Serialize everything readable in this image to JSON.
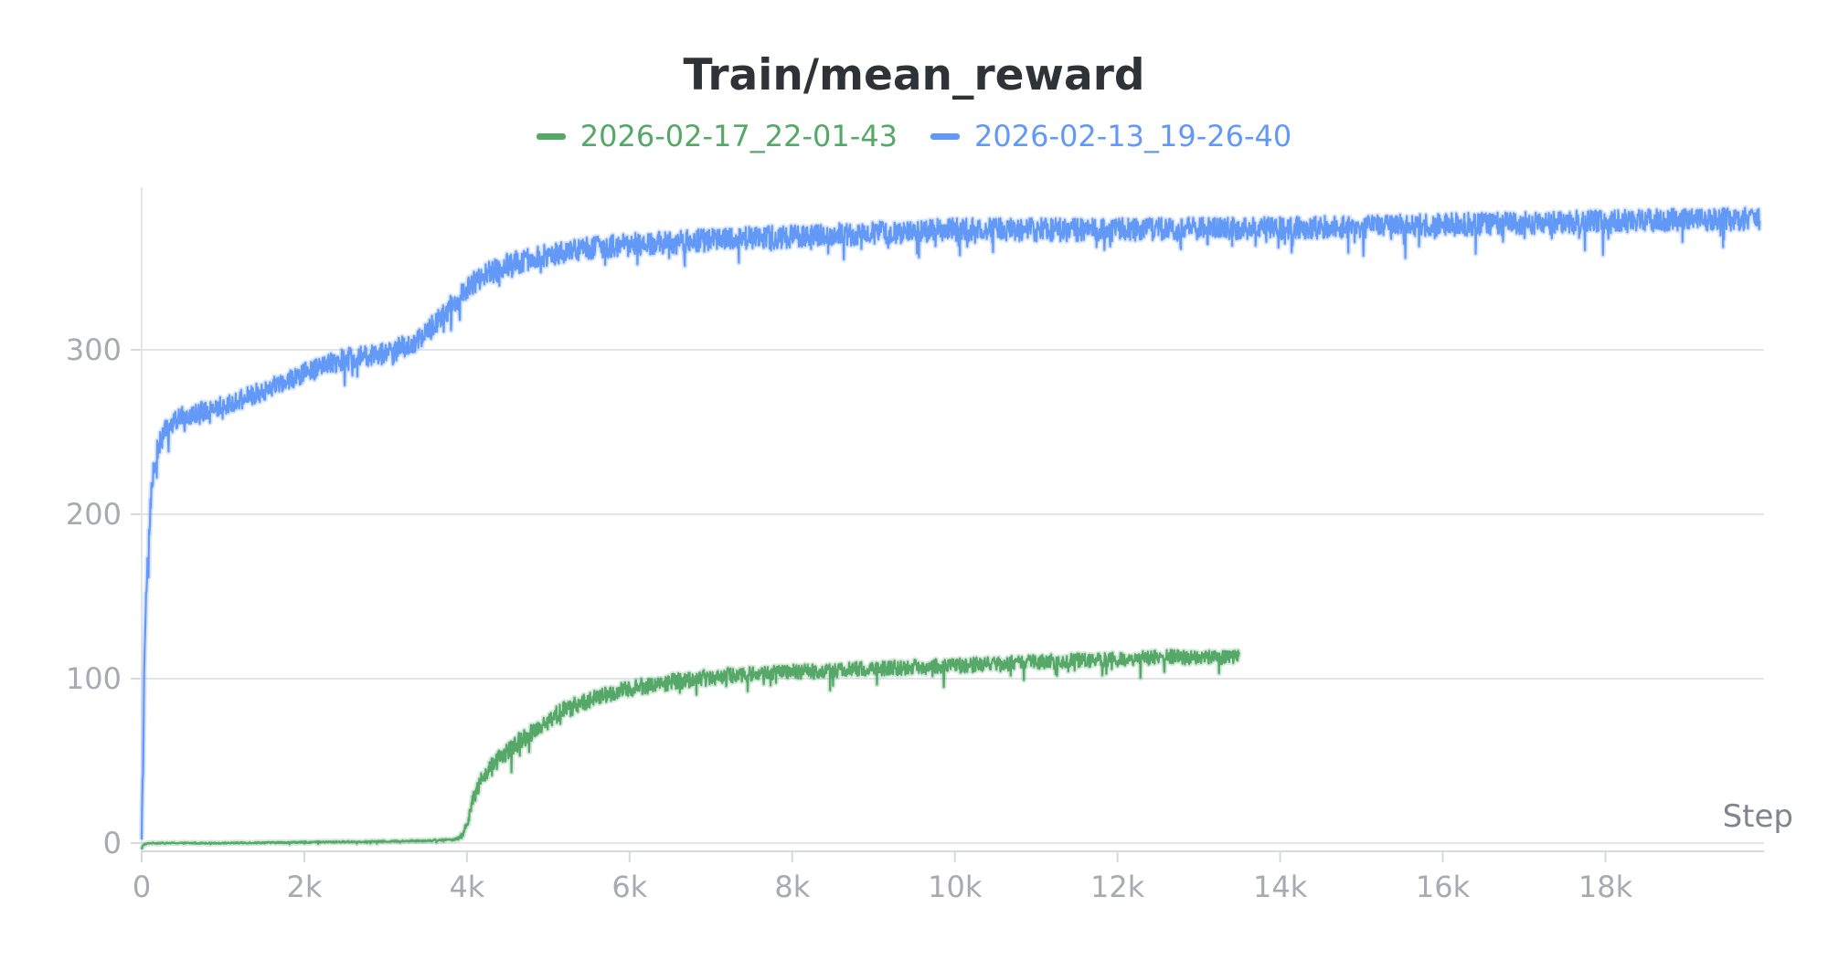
{
  "chart_data": {
    "type": "line",
    "title": "Train/mean_reward",
    "xlabel": "Step",
    "ylabel": "",
    "xlim": [
      0,
      20000
    ],
    "ylim": [
      -8,
      400
    ],
    "x_ticks": [
      {
        "value": 0,
        "label": "0"
      },
      {
        "value": 2000,
        "label": "2k"
      },
      {
        "value": 4000,
        "label": "4k"
      },
      {
        "value": 6000,
        "label": "6k"
      },
      {
        "value": 8000,
        "label": "8k"
      },
      {
        "value": 10000,
        "label": "10k"
      },
      {
        "value": 12000,
        "label": "12k"
      },
      {
        "value": 14000,
        "label": "14k"
      },
      {
        "value": 16000,
        "label": "16k"
      },
      {
        "value": 18000,
        "label": "18k"
      }
    ],
    "y_ticks": [
      {
        "value": 0,
        "label": "0"
      },
      {
        "value": 100,
        "label": "100"
      },
      {
        "value": 200,
        "label": "200"
      },
      {
        "value": 300,
        "label": "300"
      }
    ],
    "grid": true,
    "legend_position": "top-center",
    "series": [
      {
        "name": "2026-02-17_22-01-43",
        "color": "#55a868",
        "x": [
          0,
          20,
          100,
          500,
          1000,
          2000,
          3000,
          3500,
          3800,
          3900,
          3950,
          4000,
          4050,
          4100,
          4200,
          4300,
          4500,
          4700,
          5000,
          5200,
          5500,
          6000,
          6500,
          7000,
          7500,
          8000,
          8500,
          9000,
          9500,
          10000,
          10500,
          11000,
          11500,
          12000,
          12500,
          13000,
          13500
        ],
        "values": [
          -4,
          -1,
          0,
          0,
          0,
          0.5,
          1,
          1.5,
          2,
          3,
          5,
          12,
          22,
          30,
          40,
          47,
          56,
          64,
          75,
          81,
          87,
          94,
          98,
          101,
          103,
          104,
          105,
          106,
          107,
          108,
          109,
          110,
          111,
          112,
          113,
          113,
          113
        ],
        "noise": [
          0.4,
          0.4,
          0.4,
          0.4,
          0.4,
          0.5,
          0.5,
          0.6,
          0.6,
          1,
          2,
          3.5,
          4,
          4.5,
          5,
          5,
          5.5,
          5.5,
          5.5,
          5.5,
          5,
          5,
          5,
          5,
          4.5,
          4.5,
          4.5,
          4.5,
          4.5,
          4.5,
          4.5,
          4.5,
          4.5,
          4.5,
          4.5,
          4.5,
          4.5
        ]
      },
      {
        "name": "2026-02-13_19-26-40",
        "color": "#6399f6",
        "x": [
          0,
          10,
          30,
          60,
          100,
          150,
          200,
          300,
          500,
          700,
          1000,
          1500,
          2000,
          2500,
          3000,
          3300,
          3500,
          3700,
          3900,
          4000,
          4200,
          4500,
          5000,
          5500,
          6000,
          6500,
          7000,
          8000,
          9000,
          10000,
          11000,
          12000,
          13000,
          14000,
          15000,
          16000,
          17000,
          18000,
          19000,
          19900
        ],
        "values": [
          5,
          30,
          95,
          155,
          200,
          228,
          240,
          252,
          260,
          262,
          266,
          275,
          286,
          294,
          298,
          303,
          310,
          322,
          330,
          338,
          345,
          352,
          358,
          362,
          364,
          365,
          367,
          369,
          371,
          373,
          373,
          373,
          374,
          374,
          375,
          376,
          377,
          378,
          379,
          380
        ],
        "noise": [
          3,
          6,
          10,
          10,
          10,
          8,
          7,
          6,
          6,
          6,
          6,
          6,
          6,
          7,
          7,
          7,
          7,
          7,
          7,
          7,
          7,
          7,
          7,
          7,
          7,
          7,
          7,
          7,
          7,
          7,
          7,
          7,
          7,
          7,
          7,
          7,
          7,
          7,
          7,
          7
        ]
      }
    ]
  }
}
